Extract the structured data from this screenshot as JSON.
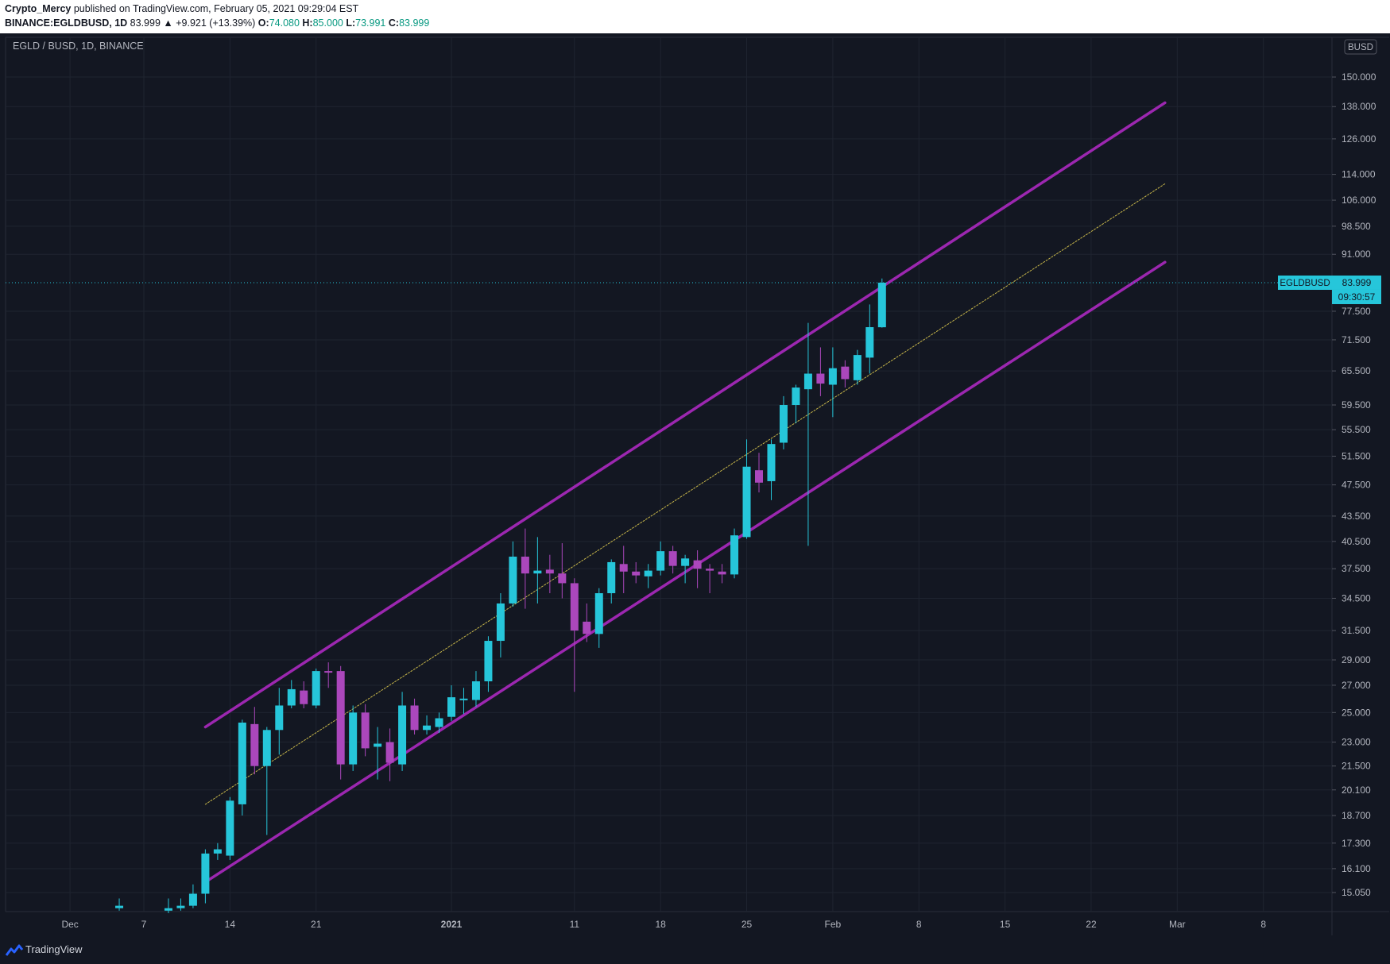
{
  "header": {
    "author": "Crypto_Mercy",
    "published_text": "published on TradingView.com, February 05, 2021 09:29:04 EST",
    "symbol_line_prefix": "BINANCE:EGLDBUSD, 1D",
    "last_price": "83.999",
    "change": "▲ +9.921 (+13.39%)",
    "o_label": "O:",
    "o_value": "74.080",
    "h_label": "H:",
    "h_value": "85.000",
    "l_label": "L:",
    "l_value": "73.991",
    "c_label": "C:",
    "c_value": "83.999"
  },
  "chart_title": "EGLD / BUSD, 1D, BINANCE",
  "currency_badge": "BUSD",
  "price_tag": {
    "symbol": "EGLDBUSD",
    "value": "83.999",
    "countdown": "09:30:57"
  },
  "footer": {
    "brand": "TradingView"
  },
  "colors": {
    "background": "#131722",
    "up": "#26c6da",
    "down": "#ab47bc",
    "channel": "#9c27b0",
    "midline": "#c8b74a",
    "grid": "#1f2430",
    "axis_text": "#b2b5be"
  },
  "chart_data": {
    "type": "candlestick",
    "scale": "log",
    "x_labels": [
      {
        "date": "2020-12-01",
        "label": "Dec"
      },
      {
        "date": "2020-12-07",
        "label": "7"
      },
      {
        "date": "2020-12-14",
        "label": "14"
      },
      {
        "date": "2020-12-21",
        "label": "21"
      },
      {
        "date": "2021-01-01",
        "label": "2021"
      },
      {
        "date": "2021-01-11",
        "label": "11"
      },
      {
        "date": "2021-01-18",
        "label": "18"
      },
      {
        "date": "2021-01-25",
        "label": "25"
      },
      {
        "date": "2021-02-01",
        "label": "Feb"
      },
      {
        "date": "2021-02-08",
        "label": "8"
      },
      {
        "date": "2021-02-15",
        "label": "15"
      },
      {
        "date": "2021-02-22",
        "label": "22"
      },
      {
        "date": "2021-03-01",
        "label": "Mar"
      },
      {
        "date": "2021-03-08",
        "label": "8"
      }
    ],
    "y_ticks": [
      "150.000",
      "138.000",
      "126.000",
      "114.000",
      "106.000",
      "98.500",
      "91.000",
      "77.500",
      "71.500",
      "65.500",
      "59.500",
      "55.500",
      "51.500",
      "47.500",
      "43.500",
      "40.500",
      "37.500",
      "34.500",
      "31.500",
      "29.000",
      "27.000",
      "25.000",
      "23.000",
      "21.500",
      "20.100",
      "18.700",
      "17.300",
      "16.100",
      "15.050"
    ],
    "candles": [
      {
        "date": "2020-12-05",
        "o": 14.4,
        "h": 14.8,
        "l": 14.3,
        "c": 14.5
      },
      {
        "date": "2020-12-09",
        "o": 14.3,
        "h": 14.8,
        "l": 14.2,
        "c": 14.4
      },
      {
        "date": "2020-12-10",
        "o": 14.4,
        "h": 14.8,
        "l": 14.3,
        "c": 14.5
      },
      {
        "date": "2020-12-11",
        "o": 14.5,
        "h": 15.4,
        "l": 14.4,
        "c": 15.0
      },
      {
        "date": "2020-12-12",
        "o": 15.0,
        "h": 17.0,
        "l": 14.6,
        "c": 16.8
      },
      {
        "date": "2020-12-13",
        "o": 16.8,
        "h": 17.3,
        "l": 16.5,
        "c": 17.0
      },
      {
        "date": "2020-12-14",
        "o": 16.7,
        "h": 19.7,
        "l": 16.5,
        "c": 19.5
      },
      {
        "date": "2020-12-15",
        "o": 19.3,
        "h": 24.5,
        "l": 18.7,
        "c": 24.3
      },
      {
        "date": "2020-12-16",
        "o": 24.2,
        "h": 25.4,
        "l": 21.0,
        "c": 21.5
      },
      {
        "date": "2020-12-17",
        "o": 21.5,
        "h": 24.0,
        "l": 17.7,
        "c": 23.8
      },
      {
        "date": "2020-12-18",
        "o": 23.8,
        "h": 26.8,
        "l": 22.2,
        "c": 25.5
      },
      {
        "date": "2020-12-19",
        "o": 25.5,
        "h": 27.4,
        "l": 25.3,
        "c": 26.7
      },
      {
        "date": "2020-12-20",
        "o": 26.6,
        "h": 27.3,
        "l": 25.3,
        "c": 25.6
      },
      {
        "date": "2020-12-21",
        "o": 25.5,
        "h": 28.3,
        "l": 25.3,
        "c": 28.1
      },
      {
        "date": "2020-12-22",
        "o": 28.1,
        "h": 28.8,
        "l": 26.8,
        "c": 28.0
      },
      {
        "date": "2020-12-23",
        "o": 28.1,
        "h": 28.5,
        "l": 20.7,
        "c": 21.6
      },
      {
        "date": "2020-12-24",
        "o": 21.6,
        "h": 25.5,
        "l": 21.2,
        "c": 25.0
      },
      {
        "date": "2020-12-25",
        "o": 25.0,
        "h": 25.6,
        "l": 22.1,
        "c": 22.6
      },
      {
        "date": "2020-12-26",
        "o": 22.7,
        "h": 24.0,
        "l": 20.7,
        "c": 22.9
      },
      {
        "date": "2020-12-27",
        "o": 23.0,
        "h": 23.9,
        "l": 20.6,
        "c": 21.7
      },
      {
        "date": "2020-12-28",
        "o": 21.6,
        "h": 26.5,
        "l": 21.2,
        "c": 25.5
      },
      {
        "date": "2020-12-29",
        "o": 25.5,
        "h": 26.0,
        "l": 23.5,
        "c": 23.8
      },
      {
        "date": "2020-12-30",
        "o": 23.8,
        "h": 24.8,
        "l": 23.5,
        "c": 24.1
      },
      {
        "date": "2020-12-31",
        "o": 24.0,
        "h": 25.0,
        "l": 23.6,
        "c": 24.6
      },
      {
        "date": "2021-01-01",
        "o": 24.7,
        "h": 27.0,
        "l": 24.4,
        "c": 26.1
      },
      {
        "date": "2021-01-02",
        "o": 25.9,
        "h": 26.8,
        "l": 24.9,
        "c": 26.0
      },
      {
        "date": "2021-01-03",
        "o": 25.9,
        "h": 28.1,
        "l": 25.4,
        "c": 27.3
      },
      {
        "date": "2021-01-04",
        "o": 27.3,
        "h": 31.0,
        "l": 26.5,
        "c": 30.6
      },
      {
        "date": "2021-01-05",
        "o": 30.6,
        "h": 35.0,
        "l": 29.2,
        "c": 34.0
      },
      {
        "date": "2021-01-06",
        "o": 34.0,
        "h": 40.5,
        "l": 33.7,
        "c": 38.8
      },
      {
        "date": "2021-01-07",
        "o": 38.8,
        "h": 42.0,
        "l": 33.5,
        "c": 37.0
      },
      {
        "date": "2021-01-08",
        "o": 37.0,
        "h": 41.0,
        "l": 34.0,
        "c": 37.3
      },
      {
        "date": "2021-01-09",
        "o": 37.4,
        "h": 39.0,
        "l": 35.0,
        "c": 37.0
      },
      {
        "date": "2021-01-10",
        "o": 37.0,
        "h": 40.3,
        "l": 34.5,
        "c": 36.0
      },
      {
        "date": "2021-01-11",
        "o": 36.0,
        "h": 36.5,
        "l": 26.5,
        "c": 31.5
      },
      {
        "date": "2021-01-12",
        "o": 32.3,
        "h": 34.0,
        "l": 30.5,
        "c": 31.2
      },
      {
        "date": "2021-01-13",
        "o": 31.2,
        "h": 35.5,
        "l": 30.0,
        "c": 35.0
      },
      {
        "date": "2021-01-14",
        "o": 35.0,
        "h": 38.5,
        "l": 34.0,
        "c": 38.2
      },
      {
        "date": "2021-01-15",
        "o": 38.0,
        "h": 40.0,
        "l": 35.0,
        "c": 37.2
      },
      {
        "date": "2021-01-16",
        "o": 37.2,
        "h": 38.2,
        "l": 36.0,
        "c": 36.8
      },
      {
        "date": "2021-01-17",
        "o": 36.7,
        "h": 38.0,
        "l": 35.5,
        "c": 37.3
      },
      {
        "date": "2021-01-18",
        "o": 37.3,
        "h": 40.5,
        "l": 36.8,
        "c": 39.4
      },
      {
        "date": "2021-01-19",
        "o": 39.4,
        "h": 40.0,
        "l": 37.0,
        "c": 37.8
      },
      {
        "date": "2021-01-20",
        "o": 37.8,
        "h": 39.0,
        "l": 36.0,
        "c": 38.6
      },
      {
        "date": "2021-01-21",
        "o": 38.4,
        "h": 39.5,
        "l": 35.5,
        "c": 37.5
      },
      {
        "date": "2021-01-22",
        "o": 37.5,
        "h": 38.0,
        "l": 35.0,
        "c": 37.3
      },
      {
        "date": "2021-01-23",
        "o": 37.2,
        "h": 38.0,
        "l": 36.0,
        "c": 36.9
      },
      {
        "date": "2021-01-24",
        "o": 36.9,
        "h": 42.0,
        "l": 36.5,
        "c": 41.2
      },
      {
        "date": "2021-01-25",
        "o": 41.0,
        "h": 54.0,
        "l": 40.8,
        "c": 50.0
      },
      {
        "date": "2021-01-26",
        "o": 49.5,
        "h": 52.0,
        "l": 46.5,
        "c": 47.8
      },
      {
        "date": "2021-01-27",
        "o": 48.0,
        "h": 54.0,
        "l": 45.5,
        "c": 53.3
      },
      {
        "date": "2021-01-28",
        "o": 53.5,
        "h": 61.0,
        "l": 52.5,
        "c": 59.5
      },
      {
        "date": "2021-01-29",
        "o": 59.5,
        "h": 63.0,
        "l": 56.5,
        "c": 62.5
      },
      {
        "date": "2021-01-30",
        "o": 62.2,
        "h": 75.0,
        "l": 40.0,
        "c": 65.0
      },
      {
        "date": "2021-01-31",
        "o": 65.0,
        "h": 70.0,
        "l": 61.0,
        "c": 63.2
      },
      {
        "date": "2021-02-01",
        "o": 63.0,
        "h": 70.0,
        "l": 57.5,
        "c": 66.0
      },
      {
        "date": "2021-02-02",
        "o": 66.3,
        "h": 67.5,
        "l": 62.5,
        "c": 64.0
      },
      {
        "date": "2021-02-03",
        "o": 63.8,
        "h": 69.5,
        "l": 63.0,
        "c": 68.5
      },
      {
        "date": "2021-02-04",
        "o": 68.0,
        "h": 79.0,
        "l": 65.0,
        "c": 74.1
      },
      {
        "date": "2021-02-05",
        "o": 74.08,
        "h": 85.0,
        "l": 73.991,
        "c": 83.999
      }
    ],
    "channel": {
      "upper": [
        {
          "date": "2020-12-12",
          "price": 24.0
        },
        {
          "date": "2021-02-28",
          "price": 139.5
        }
      ],
      "lower": [
        {
          "date": "2020-12-12",
          "price": 15.5
        },
        {
          "date": "2021-02-28",
          "price": 89.0
        }
      ],
      "middle": [
        {
          "date": "2020-12-12",
          "price": 19.3
        },
        {
          "date": "2021-02-28",
          "price": 111.0
        }
      ]
    },
    "last_price_line": 83.999
  }
}
